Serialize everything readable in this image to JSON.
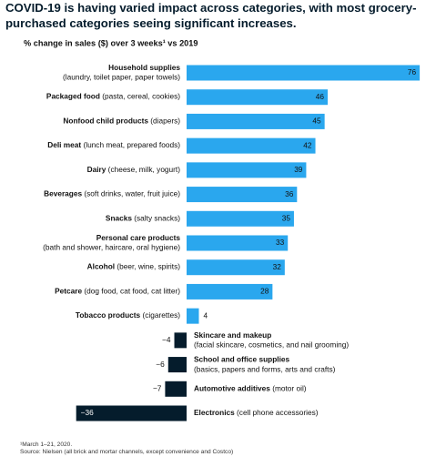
{
  "chart_data": {
    "type": "bar",
    "orientation": "horizontal",
    "title": "COVID-19 is having varied impact across categories, with most grocery-purchased categories seeing significant increases.",
    "subtitle": "% change in sales ($) over 3 weeks¹ vs 2019",
    "categories": [
      "Household supplies",
      "Packaged food",
      "Nonfood child products",
      "Deli meat",
      "Dairy",
      "Beverages",
      "Snacks",
      "Personal care products",
      "Alcohol",
      "Petcare",
      "Tobacco products",
      "Skincare and makeup",
      "School and office supplies",
      "Automotive additives",
      "Electronics"
    ],
    "category_notes": [
      "(laundry, toilet paper, paper towels)",
      "(pasta, cereal, cookies)",
      "(diapers)",
      "(lunch meat, prepared foods)",
      "(cheese, milk, yogurt)",
      "(soft drinks, water, fruit juice)",
      "(salty snacks)",
      "(bath and shower, haircare, oral hygiene)",
      "(beer, wine, spirits)",
      "(dog food, cat food, cat litter)",
      "(cigarettes)",
      "(facial skincare, cosmetics, and nail grooming)",
      "(basics, papers and forms, arts and crafts)",
      "(motor oil)",
      "(cell phone accessories)"
    ],
    "values": [
      76,
      46,
      45,
      42,
      39,
      36,
      35,
      33,
      32,
      28,
      4,
      -4,
      -6,
      -7,
      -36
    ],
    "value_labels": [
      "76",
      "46",
      "45",
      "42",
      "39",
      "36",
      "35",
      "33",
      "32",
      "28",
      "4",
      "−4",
      "−6",
      "−7",
      "−36"
    ],
    "positive_color": "#2aa7ee",
    "negative_color": "#051c2c",
    "footnotes": [
      "¹March 1–21, 2020.",
      "Source: Nielsen (all brick and mortar channels, except convenience and Costco)"
    ]
  }
}
